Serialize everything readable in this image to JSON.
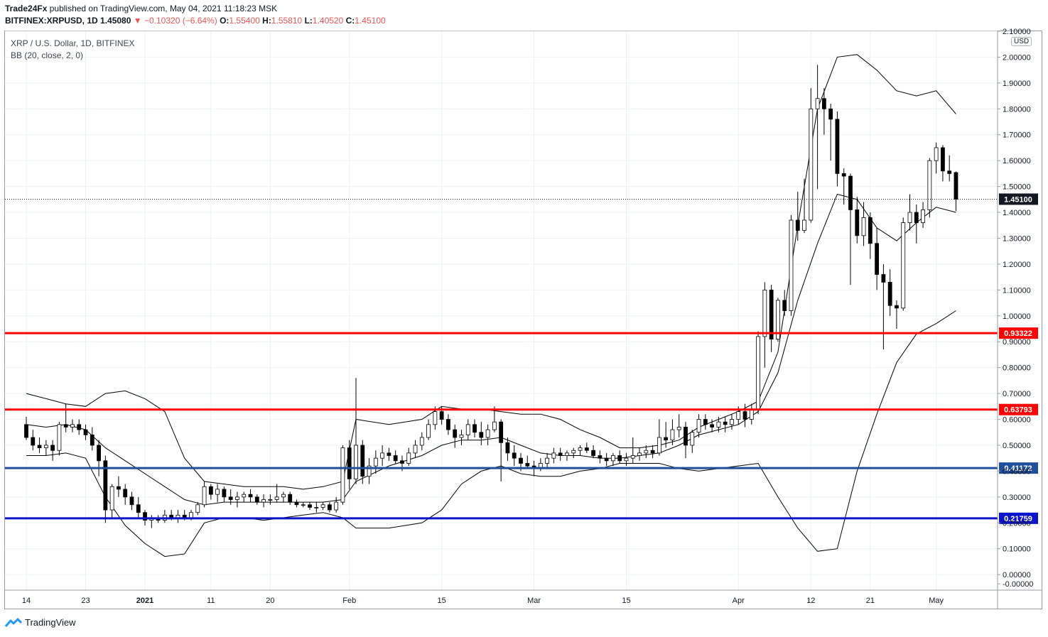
{
  "header": {
    "publisher": "Trade24Fx",
    "published_text": "published on TradingView.com, May 04, 2021 11:18:23 MSK",
    "symbol": "BITFINEX:XRPUSD, 1D",
    "last": "1.45080",
    "change": "▼ −0.10320 (−6.64%)",
    "o_label": "O:",
    "o": "1.55400",
    "h_label": "H:",
    "h": "1.55810",
    "l_label": "L:",
    "l": "1.40520",
    "c_label": "C:",
    "c": "1.45100"
  },
  "legend": {
    "title": "XRP / U.S. Dollar, 1D, BITFINEX",
    "indicator": "BB (20, close, 2, 0)"
  },
  "currency_label": "USD",
  "footer": {
    "brand": "TradingView"
  },
  "colors": {
    "up_candle": "#ffffff",
    "down_candle": "#000000",
    "band": "#000000",
    "red_line": "#ff0000",
    "blue_line_1": "#1f4e9a",
    "blue_line_2": "#0b14c8",
    "grid": "#eef0f3"
  },
  "chart_data": {
    "type": "candlestick",
    "price_axis": {
      "range": [
        -0.06,
        2.1
      ],
      "ticks": [
        "2.10000",
        "2.00000",
        "1.90000",
        "1.80000",
        "1.70000",
        "1.60000",
        "1.50000",
        "1.40000",
        "1.30000",
        "1.20000",
        "1.10000",
        "1.00000",
        "0.90000",
        "0.80000",
        "0.70000",
        "0.60000",
        "0.50000",
        "0.40000",
        "0.30000",
        "0.20000",
        "0.10000",
        "0.00000",
        "-0.00000"
      ]
    },
    "time_axis": {
      "labels": [
        {
          "text": "14",
          "day": 0
        },
        {
          "text": "23",
          "day": 9
        },
        {
          "text": "2021",
          "day": 18
        },
        {
          "text": "11",
          "day": 28
        },
        {
          "text": "20",
          "day": 37
        },
        {
          "text": "Feb",
          "day": 49
        },
        {
          "text": "15",
          "day": 63
        },
        {
          "text": "Mar",
          "day": 77
        },
        {
          "text": "15",
          "day": 91
        },
        {
          "text": "Apr",
          "day": 108
        },
        {
          "text": "12",
          "day": 119
        },
        {
          "text": "21",
          "day": 128
        },
        {
          "text": "May",
          "day": 138
        }
      ]
    },
    "start_date": "2020-12-14",
    "horizontal_levels": [
      {
        "value": 0.93322,
        "label": "0.93322",
        "color": "#ff0000"
      },
      {
        "value": 0.63793,
        "label": "0.63793",
        "color": "#ff0000"
      },
      {
        "value": 0.41172,
        "label": "0.41172",
        "color": "#1f4e9a"
      },
      {
        "value": 0.21759,
        "label": "0.21759",
        "color": "#0b14c8"
      }
    ],
    "last_price": {
      "value": 1.451,
      "label": "1.45100"
    },
    "candles": [
      [
        0.58,
        0.61,
        0.52,
        0.53
      ],
      [
        0.53,
        0.56,
        0.48,
        0.5
      ],
      [
        0.5,
        0.53,
        0.47,
        0.49
      ],
      [
        0.49,
        0.52,
        0.46,
        0.5
      ],
      [
        0.5,
        0.52,
        0.44,
        0.48
      ],
      [
        0.48,
        0.59,
        0.46,
        0.58
      ],
      [
        0.58,
        0.66,
        0.55,
        0.57
      ],
      [
        0.57,
        0.6,
        0.55,
        0.58
      ],
      [
        0.58,
        0.6,
        0.54,
        0.56
      ],
      [
        0.56,
        0.58,
        0.52,
        0.54
      ],
      [
        0.54,
        0.57,
        0.48,
        0.5
      ],
      [
        0.5,
        0.52,
        0.38,
        0.44
      ],
      [
        0.44,
        0.46,
        0.2,
        0.25
      ],
      [
        0.25,
        0.35,
        0.22,
        0.34
      ],
      [
        0.34,
        0.38,
        0.3,
        0.33
      ],
      [
        0.33,
        0.35,
        0.27,
        0.3
      ],
      [
        0.3,
        0.32,
        0.25,
        0.27
      ],
      [
        0.27,
        0.3,
        0.22,
        0.24
      ],
      [
        0.24,
        0.25,
        0.19,
        0.21
      ],
      [
        0.21,
        0.23,
        0.18,
        0.22
      ],
      [
        0.22,
        0.23,
        0.2,
        0.21
      ],
      [
        0.21,
        0.25,
        0.2,
        0.23
      ],
      [
        0.23,
        0.25,
        0.21,
        0.22
      ],
      [
        0.22,
        0.25,
        0.2,
        0.23
      ],
      [
        0.23,
        0.25,
        0.21,
        0.22
      ],
      [
        0.22,
        0.25,
        0.21,
        0.24
      ],
      [
        0.24,
        0.28,
        0.23,
        0.27
      ],
      [
        0.27,
        0.36,
        0.26,
        0.34
      ],
      [
        0.34,
        0.35,
        0.29,
        0.31
      ],
      [
        0.31,
        0.35,
        0.28,
        0.33
      ],
      [
        0.33,
        0.34,
        0.28,
        0.3
      ],
      [
        0.3,
        0.33,
        0.27,
        0.29
      ],
      [
        0.29,
        0.32,
        0.26,
        0.3
      ],
      [
        0.3,
        0.32,
        0.28,
        0.31
      ],
      [
        0.31,
        0.33,
        0.28,
        0.3
      ],
      [
        0.3,
        0.31,
        0.27,
        0.28
      ],
      [
        0.28,
        0.31,
        0.26,
        0.29
      ],
      [
        0.29,
        0.31,
        0.27,
        0.29
      ],
      [
        0.29,
        0.35,
        0.28,
        0.3
      ],
      [
        0.3,
        0.32,
        0.28,
        0.31
      ],
      [
        0.31,
        0.32,
        0.27,
        0.28
      ],
      [
        0.28,
        0.29,
        0.26,
        0.27
      ],
      [
        0.27,
        0.28,
        0.26,
        0.27
      ],
      [
        0.27,
        0.28,
        0.25,
        0.26
      ],
      [
        0.26,
        0.28,
        0.24,
        0.26
      ],
      [
        0.26,
        0.28,
        0.25,
        0.27
      ],
      [
        0.27,
        0.28,
        0.24,
        0.25
      ],
      [
        0.25,
        0.3,
        0.24,
        0.28
      ],
      [
        0.28,
        0.5,
        0.27,
        0.49
      ],
      [
        0.49,
        0.52,
        0.33,
        0.37
      ],
      [
        0.37,
        0.76,
        0.35,
        0.5
      ],
      [
        0.5,
        0.52,
        0.35,
        0.38
      ],
      [
        0.38,
        0.45,
        0.35,
        0.42
      ],
      [
        0.42,
        0.48,
        0.39,
        0.45
      ],
      [
        0.45,
        0.5,
        0.42,
        0.47
      ],
      [
        0.47,
        0.49,
        0.44,
        0.46
      ],
      [
        0.46,
        0.48,
        0.43,
        0.44
      ],
      [
        0.44,
        0.46,
        0.4,
        0.43
      ],
      [
        0.43,
        0.49,
        0.42,
        0.47
      ],
      [
        0.47,
        0.52,
        0.45,
        0.5
      ],
      [
        0.5,
        0.55,
        0.48,
        0.53
      ],
      [
        0.53,
        0.6,
        0.52,
        0.58
      ],
      [
        0.58,
        0.65,
        0.56,
        0.63
      ],
      [
        0.63,
        0.65,
        0.58,
        0.6
      ],
      [
        0.6,
        0.62,
        0.54,
        0.56
      ],
      [
        0.56,
        0.58,
        0.49,
        0.53
      ],
      [
        0.53,
        0.56,
        0.5,
        0.54
      ],
      [
        0.54,
        0.6,
        0.52,
        0.58
      ],
      [
        0.58,
        0.6,
        0.53,
        0.55
      ],
      [
        0.55,
        0.59,
        0.5,
        0.53
      ],
      [
        0.53,
        0.58,
        0.5,
        0.56
      ],
      [
        0.56,
        0.65,
        0.55,
        0.59
      ],
      [
        0.59,
        0.6,
        0.36,
        0.51
      ],
      [
        0.51,
        0.53,
        0.44,
        0.47
      ],
      [
        0.47,
        0.5,
        0.42,
        0.45
      ],
      [
        0.45,
        0.47,
        0.4,
        0.43
      ],
      [
        0.43,
        0.46,
        0.41,
        0.42
      ],
      [
        0.42,
        0.44,
        0.38,
        0.41
      ],
      [
        0.41,
        0.45,
        0.4,
        0.43
      ],
      [
        0.43,
        0.47,
        0.41,
        0.45
      ],
      [
        0.45,
        0.49,
        0.43,
        0.47
      ],
      [
        0.47,
        0.49,
        0.44,
        0.46
      ],
      [
        0.46,
        0.48,
        0.44,
        0.47
      ],
      [
        0.47,
        0.49,
        0.45,
        0.48
      ],
      [
        0.48,
        0.5,
        0.46,
        0.49
      ],
      [
        0.49,
        0.51,
        0.47,
        0.48
      ],
      [
        0.48,
        0.5,
        0.45,
        0.46
      ],
      [
        0.46,
        0.48,
        0.43,
        0.45
      ],
      [
        0.45,
        0.47,
        0.42,
        0.44
      ],
      [
        0.44,
        0.47,
        0.42,
        0.46
      ],
      [
        0.46,
        0.48,
        0.43,
        0.44
      ],
      [
        0.44,
        0.47,
        0.42,
        0.45
      ],
      [
        0.45,
        0.53,
        0.43,
        0.46
      ],
      [
        0.46,
        0.49,
        0.44,
        0.47
      ],
      [
        0.47,
        0.5,
        0.45,
        0.48
      ],
      [
        0.48,
        0.5,
        0.45,
        0.47
      ],
      [
        0.47,
        0.6,
        0.46,
        0.53
      ],
      [
        0.53,
        0.59,
        0.49,
        0.52
      ],
      [
        0.52,
        0.6,
        0.5,
        0.56
      ],
      [
        0.56,
        0.62,
        0.53,
        0.57
      ],
      [
        0.57,
        0.59,
        0.45,
        0.5
      ],
      [
        0.5,
        0.56,
        0.47,
        0.55
      ],
      [
        0.55,
        0.62,
        0.53,
        0.6
      ],
      [
        0.6,
        0.62,
        0.56,
        0.58
      ],
      [
        0.58,
        0.6,
        0.55,
        0.57
      ],
      [
        0.57,
        0.61,
        0.55,
        0.59
      ],
      [
        0.59,
        0.61,
        0.55,
        0.58
      ],
      [
        0.58,
        0.62,
        0.56,
        0.6
      ],
      [
        0.6,
        0.65,
        0.58,
        0.63
      ],
      [
        0.63,
        0.66,
        0.57,
        0.6
      ],
      [
        0.6,
        0.66,
        0.58,
        0.64
      ],
      [
        0.64,
        0.94,
        0.62,
        0.92
      ],
      [
        0.92,
        1.13,
        0.8,
        1.1
      ],
      [
        1.1,
        1.12,
        0.86,
        0.91
      ],
      [
        0.91,
        1.07,
        0.9,
        1.06
      ],
      [
        1.06,
        1.1,
        1.0,
        1.02
      ],
      [
        1.02,
        1.39,
        1.0,
        1.37
      ],
      [
        1.37,
        1.48,
        1.29,
        1.33
      ],
      [
        1.33,
        1.53,
        1.32,
        1.37
      ],
      [
        1.37,
        1.88,
        1.36,
        1.8
      ],
      [
        1.8,
        1.97,
        1.49,
        1.84
      ],
      [
        1.84,
        1.88,
        1.7,
        1.8
      ],
      [
        1.8,
        1.82,
        1.6,
        1.76
      ],
      [
        1.76,
        1.79,
        1.5,
        1.55
      ],
      [
        1.55,
        1.57,
        1.43,
        1.54
      ],
      [
        1.54,
        1.55,
        1.12,
        1.41
      ],
      [
        1.41,
        1.46,
        1.28,
        1.31
      ],
      [
        1.31,
        1.44,
        1.27,
        1.38
      ],
      [
        1.38,
        1.4,
        1.22,
        1.28
      ],
      [
        1.28,
        1.34,
        1.1,
        1.16
      ],
      [
        1.16,
        1.2,
        0.87,
        1.13
      ],
      [
        1.13,
        1.18,
        1.0,
        1.04
      ],
      [
        1.04,
        1.06,
        0.95,
        1.03
      ],
      [
        1.03,
        1.38,
        1.02,
        1.36
      ],
      [
        1.36,
        1.47,
        1.33,
        1.4
      ],
      [
        1.4,
        1.43,
        1.28,
        1.36
      ],
      [
        1.36,
        1.44,
        1.34,
        1.41
      ],
      [
        1.41,
        1.61,
        1.38,
        1.6
      ],
      [
        1.6,
        1.67,
        1.55,
        1.65
      ],
      [
        1.65,
        1.66,
        1.52,
        1.56
      ],
      [
        1.56,
        1.62,
        1.52,
        1.55
      ],
      [
        1.554,
        1.5581,
        1.4052,
        1.451
      ]
    ],
    "bollinger": {
      "period": 20,
      "stddev": 2,
      "upper_days": [
        0,
        3,
        6,
        9,
        12,
        15,
        18,
        21,
        24,
        27,
        30,
        33,
        36,
        39,
        42,
        45,
        48,
        50,
        55,
        60,
        63,
        66,
        69,
        72,
        75,
        78,
        81,
        84,
        87,
        90,
        93,
        96,
        99,
        102,
        105,
        108,
        111,
        114,
        117,
        120,
        123,
        126,
        129,
        132,
        135,
        138,
        141
      ],
      "upper_values": [
        0.7,
        0.68,
        0.66,
        0.65,
        0.7,
        0.71,
        0.68,
        0.63,
        0.45,
        0.36,
        0.35,
        0.34,
        0.34,
        0.34,
        0.33,
        0.34,
        0.36,
        0.6,
        0.58,
        0.6,
        0.65,
        0.64,
        0.64,
        0.63,
        0.62,
        0.62,
        0.6,
        0.56,
        0.53,
        0.49,
        0.49,
        0.5,
        0.52,
        0.57,
        0.6,
        0.63,
        0.67,
        0.86,
        1.35,
        1.8,
        2.0,
        2.01,
        1.95,
        1.87,
        1.85,
        1.87,
        1.78
      ],
      "middle_days": [
        0,
        3,
        6,
        9,
        12,
        15,
        18,
        21,
        24,
        27,
        30,
        33,
        36,
        39,
        42,
        45,
        48,
        50,
        55,
        60,
        63,
        66,
        69,
        72,
        75,
        78,
        81,
        84,
        87,
        90,
        93,
        96,
        99,
        102,
        105,
        108,
        111,
        114,
        117,
        120,
        123,
        126,
        129,
        132,
        135,
        138,
        141
      ],
      "middle_values": [
        0.58,
        0.57,
        0.58,
        0.56,
        0.49,
        0.44,
        0.39,
        0.34,
        0.29,
        0.27,
        0.28,
        0.28,
        0.28,
        0.28,
        0.28,
        0.28,
        0.29,
        0.36,
        0.42,
        0.46,
        0.5,
        0.52,
        0.52,
        0.53,
        0.5,
        0.47,
        0.46,
        0.46,
        0.45,
        0.45,
        0.46,
        0.47,
        0.5,
        0.54,
        0.56,
        0.58,
        0.63,
        0.78,
        1.06,
        1.28,
        1.47,
        1.45,
        1.34,
        1.29,
        1.36,
        1.42,
        1.4
      ],
      "lower_days": [
        0,
        3,
        6,
        9,
        12,
        15,
        18,
        21,
        24,
        27,
        30,
        33,
        36,
        39,
        42,
        45,
        48,
        50,
        55,
        60,
        63,
        66,
        69,
        72,
        75,
        78,
        81,
        84,
        87,
        90,
        93,
        96,
        99,
        102,
        105,
        108,
        111,
        114,
        117,
        120,
        123,
        126,
        129,
        132,
        135,
        138,
        141
      ],
      "lower_values": [
        0.46,
        0.46,
        0.47,
        0.45,
        0.3,
        0.19,
        0.12,
        0.07,
        0.08,
        0.2,
        0.22,
        0.22,
        0.21,
        0.22,
        0.23,
        0.24,
        0.22,
        0.18,
        0.18,
        0.2,
        0.25,
        0.35,
        0.4,
        0.42,
        0.39,
        0.38,
        0.38,
        0.4,
        0.41,
        0.43,
        0.43,
        0.43,
        0.41,
        0.4,
        0.41,
        0.42,
        0.43,
        0.3,
        0.18,
        0.09,
        0.1,
        0.4,
        0.62,
        0.82,
        0.93,
        0.97,
        1.02
      ]
    }
  }
}
